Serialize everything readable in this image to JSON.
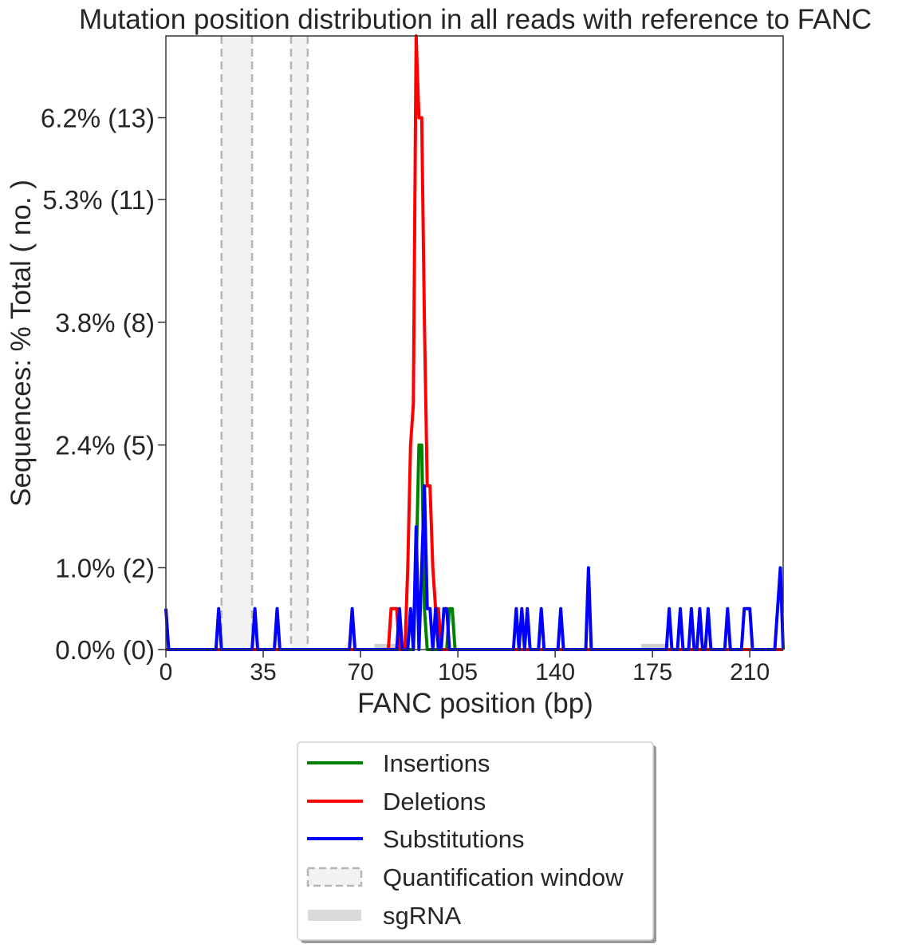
{
  "chart_data": {
    "type": "line",
    "title": "Mutation position distribution in all reads with reference to FANC",
    "xlabel": "FANC position (bp)",
    "ylabel": "Sequences: % Total ( no. )",
    "xlim": [
      0,
      222
    ],
    "ylim": [
      0,
      15
    ],
    "x_ticks": [
      0,
      35,
      70,
      105,
      140,
      175,
      210
    ],
    "y_ticks": [
      {
        "value": 0,
        "label": "0.0% (0)"
      },
      {
        "value": 2,
        "label": "1.0% (2)"
      },
      {
        "value": 5,
        "label": "2.4% (5)"
      },
      {
        "value": 8,
        "label": "3.8% (8)"
      },
      {
        "value": 11,
        "label": "5.3% (11)"
      },
      {
        "value": 13,
        "label": "6.2% (13)"
      }
    ],
    "quantification_windows": [
      [
        20,
        31
      ],
      [
        45,
        51
      ]
    ],
    "sgrna": [
      [
        75,
        85
      ],
      [
        171,
        181
      ]
    ],
    "series": [
      {
        "name": "Insertions",
        "color": "#008000",
        "points": [
          [
            0,
            0
          ],
          [
            89,
            0
          ],
          [
            90,
            2
          ],
          [
            91,
            5
          ],
          [
            92,
            5
          ],
          [
            93,
            1
          ],
          [
            94,
            0
          ],
          [
            101,
            0
          ],
          [
            102,
            1
          ],
          [
            103,
            1
          ],
          [
            104,
            0
          ],
          [
            222,
            0
          ]
        ]
      },
      {
        "name": "Deletions",
        "color": "#ff0000",
        "points": [
          [
            0,
            0
          ],
          [
            80,
            0
          ],
          [
            81,
            1
          ],
          [
            82,
            1
          ],
          [
            83,
            1
          ],
          [
            84,
            0
          ],
          [
            86,
            0
          ],
          [
            87,
            2
          ],
          [
            88,
            5
          ],
          [
            89,
            6
          ],
          [
            90,
            15
          ],
          [
            91,
            13
          ],
          [
            92,
            13
          ],
          [
            93,
            8
          ],
          [
            94,
            4
          ],
          [
            95,
            4
          ],
          [
            96,
            2
          ],
          [
            97,
            1
          ],
          [
            98,
            1
          ],
          [
            99,
            0
          ],
          [
            222,
            0
          ]
        ]
      },
      {
        "name": "Substitutions",
        "color": "#0000ff",
        "points": [
          [
            0,
            1
          ],
          [
            1,
            0
          ],
          [
            18,
            0
          ],
          [
            19,
            1
          ],
          [
            20,
            0
          ],
          [
            31,
            0
          ],
          [
            32,
            1
          ],
          [
            33,
            0
          ],
          [
            39,
            0
          ],
          [
            40,
            1
          ],
          [
            41,
            0
          ],
          [
            66,
            0
          ],
          [
            67,
            1
          ],
          [
            68,
            0
          ],
          [
            83,
            0
          ],
          [
            84,
            1
          ],
          [
            85,
            0
          ],
          [
            87,
            0
          ],
          [
            88,
            1
          ],
          [
            89,
            0
          ],
          [
            90,
            3
          ],
          [
            91,
            0
          ],
          [
            92,
            2
          ],
          [
            93,
            4
          ],
          [
            94,
            1
          ],
          [
            95,
            1
          ],
          [
            96,
            0
          ],
          [
            97,
            1
          ],
          [
            98,
            0
          ],
          [
            99,
            0
          ],
          [
            100,
            1
          ],
          [
            101,
            1
          ],
          [
            102,
            0
          ],
          [
            125,
            0
          ],
          [
            126,
            1
          ],
          [
            127,
            0
          ],
          [
            128,
            1
          ],
          [
            129,
            0
          ],
          [
            130,
            1
          ],
          [
            131,
            0
          ],
          [
            134,
            0
          ],
          [
            135,
            1
          ],
          [
            136,
            0
          ],
          [
            141,
            0
          ],
          [
            142,
            1
          ],
          [
            143,
            0
          ],
          [
            151,
            0
          ],
          [
            152,
            2
          ],
          [
            153,
            0
          ],
          [
            180,
            0
          ],
          [
            181,
            1
          ],
          [
            182,
            0
          ],
          [
            184,
            0
          ],
          [
            185,
            1
          ],
          [
            186,
            0
          ],
          [
            188,
            0
          ],
          [
            189,
            1
          ],
          [
            190,
            0
          ],
          [
            191,
            0
          ],
          [
            192,
            1
          ],
          [
            193,
            0
          ],
          [
            194,
            0
          ],
          [
            195,
            1
          ],
          [
            196,
            0
          ],
          [
            201,
            0
          ],
          [
            202,
            1
          ],
          [
            203,
            0
          ],
          [
            207,
            0
          ],
          [
            208,
            1
          ],
          [
            209,
            1
          ],
          [
            210,
            1
          ],
          [
            211,
            0
          ],
          [
            219,
            0
          ],
          [
            220,
            1
          ],
          [
            221,
            2
          ],
          [
            222,
            0
          ]
        ]
      }
    ],
    "legend": {
      "position": "bottom-center",
      "entries": [
        "Insertions",
        "Deletions",
        "Substitutions",
        "Quantification window",
        "sgRNA"
      ]
    }
  }
}
